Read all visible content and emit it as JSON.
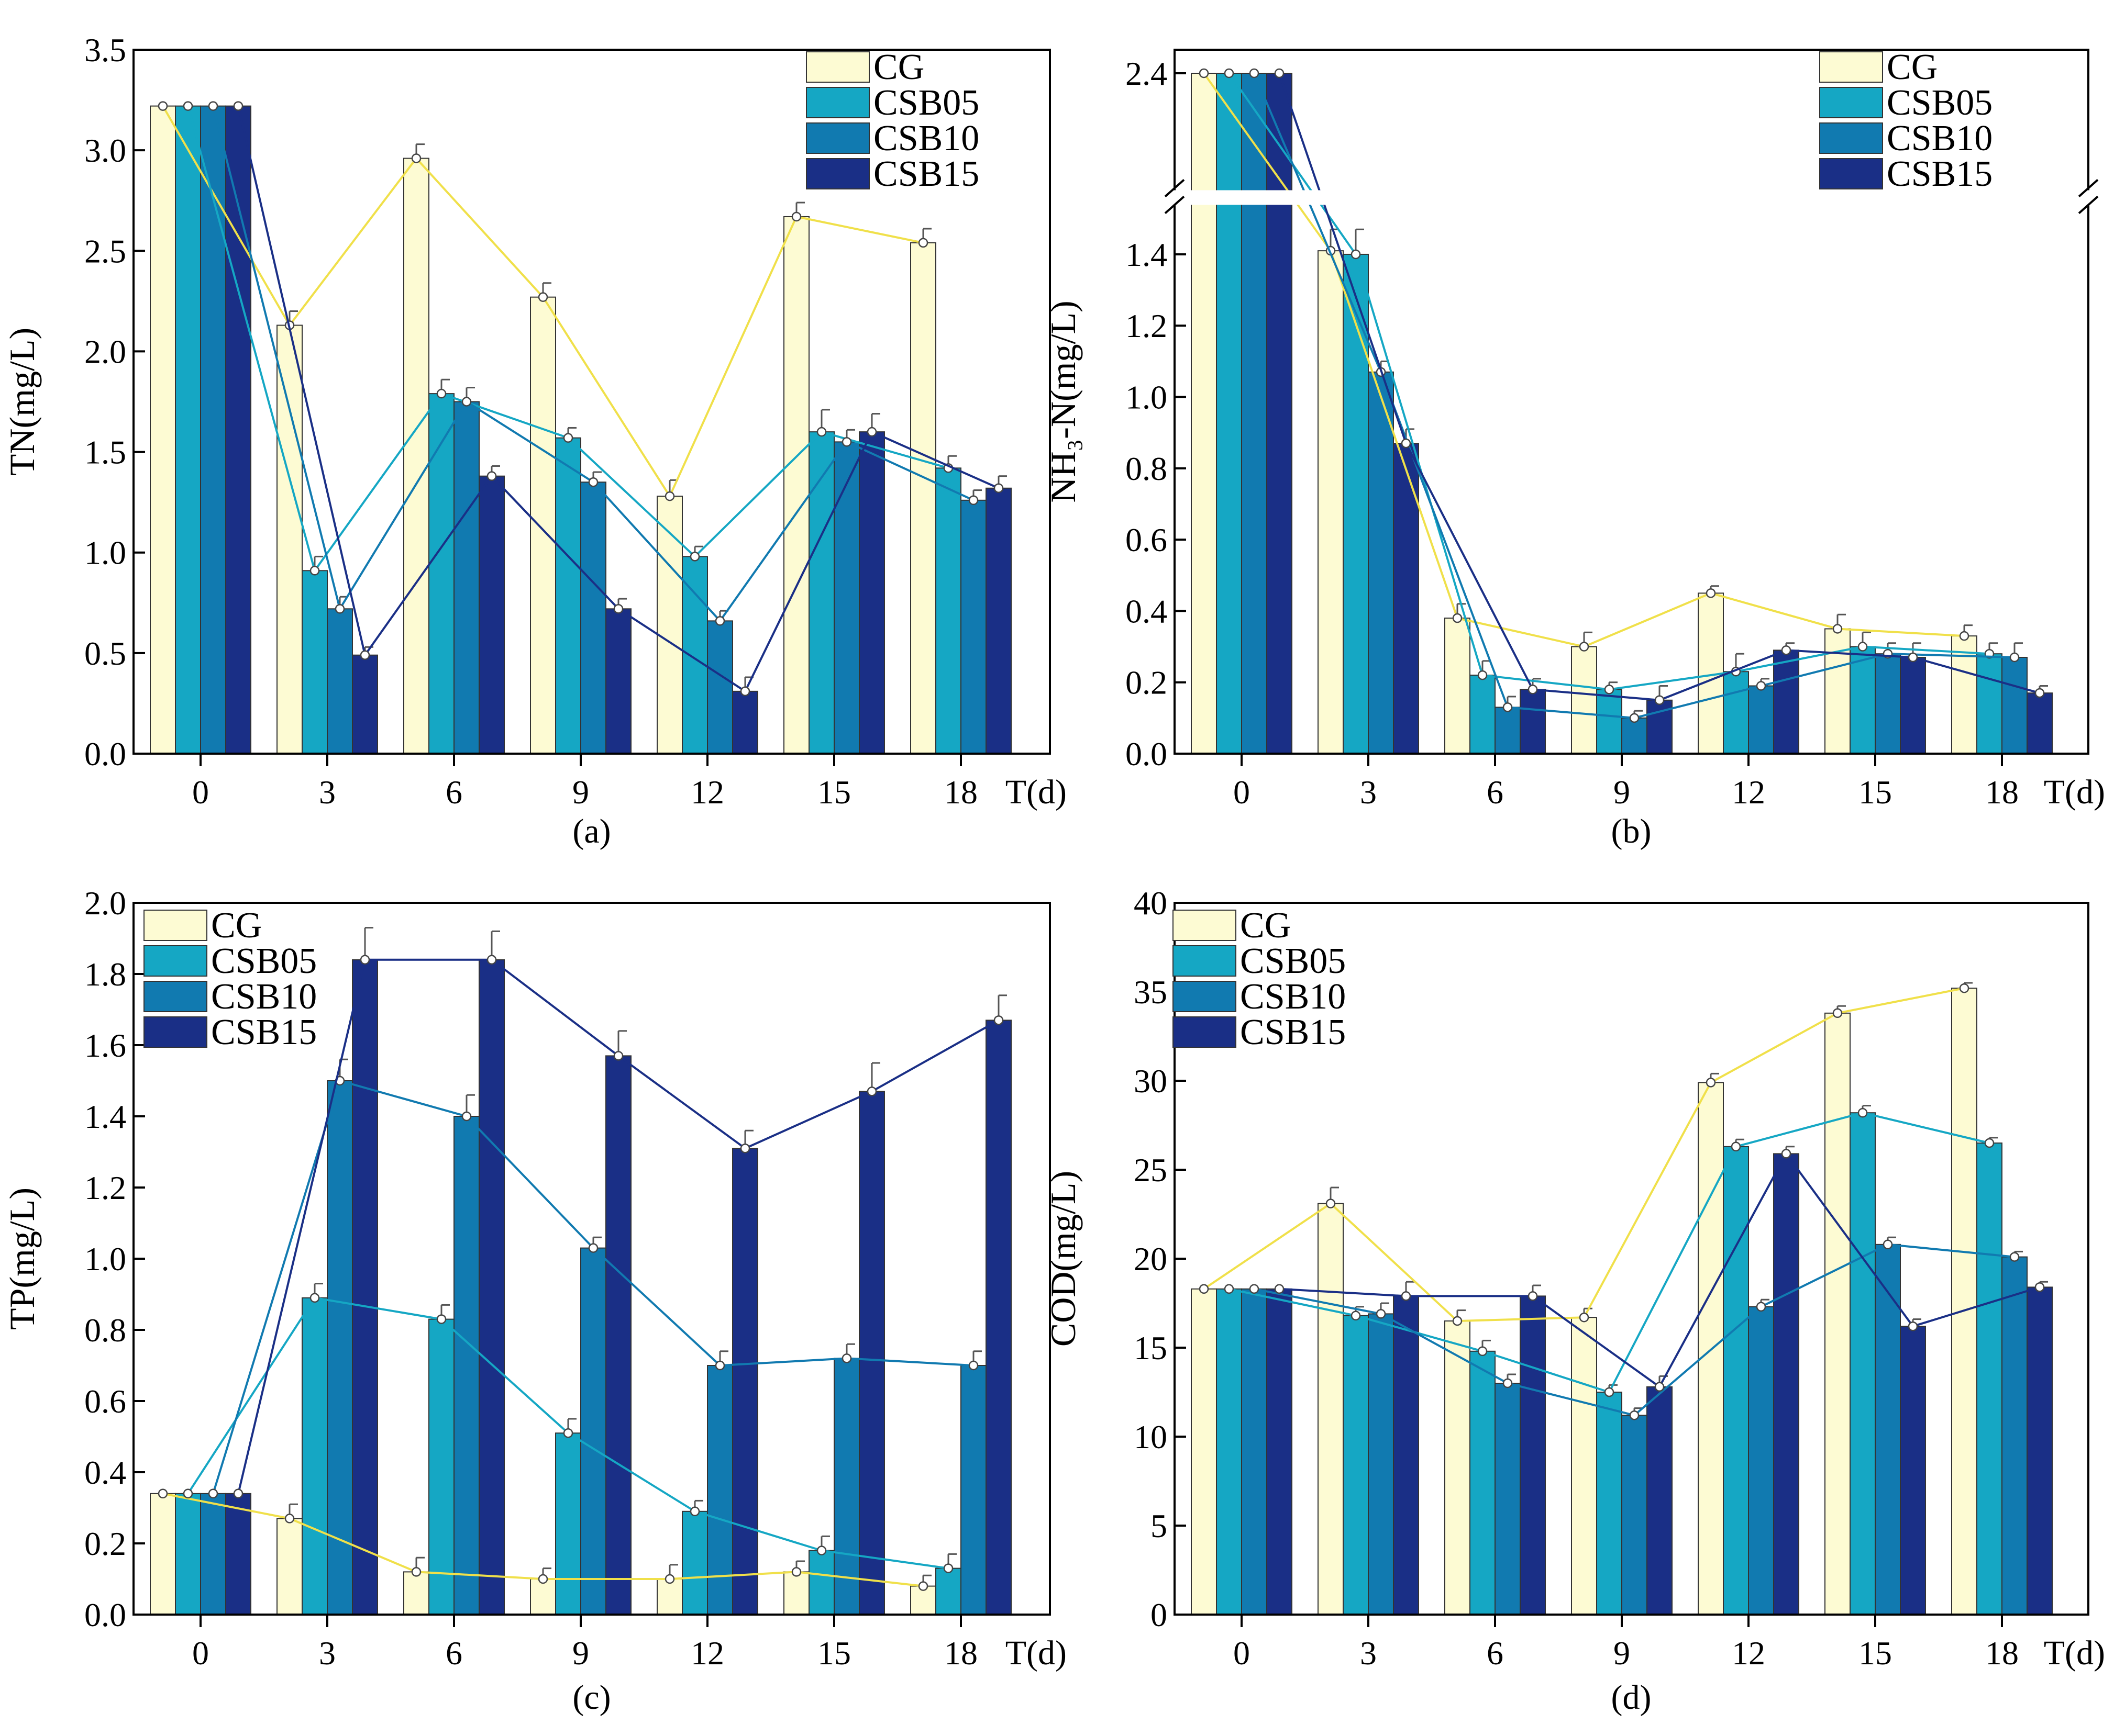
{
  "colors": {
    "CG": "#fdfbd3",
    "CSB05": "#15a7c4",
    "CSB10": "#117ab0",
    "CSB15": "#1a2f86",
    "axis": "#000000"
  },
  "chart_data": [
    {
      "id": "a",
      "type": "bar",
      "caption": "(a)",
      "xlabel": "T(d)",
      "ylabel": "TN(mg/L)",
      "categories": [
        "0",
        "3",
        "6",
        "9",
        "12",
        "15",
        "18"
      ],
      "ylim": [
        0,
        3.5
      ],
      "yticks": [
        "0.0",
        "0.5",
        "1.0",
        "1.5",
        "2.0",
        "2.5",
        "3.0",
        "3.5"
      ],
      "legend_position": "top-right",
      "series": [
        {
          "name": "CG",
          "values": [
            3.22,
            2.13,
            2.96,
            2.27,
            1.28,
            2.67,
            2.54
          ],
          "errors": [
            0.0,
            0.07,
            0.07,
            0.07,
            0.08,
            0.07,
            0.07
          ]
        },
        {
          "name": "CSB05",
          "values": [
            3.22,
            0.91,
            1.79,
            1.57,
            0.98,
            1.6,
            1.42
          ],
          "errors": [
            0.0,
            0.07,
            0.07,
            0.05,
            0.05,
            0.11,
            0.06
          ]
        },
        {
          "name": "CSB10",
          "values": [
            3.22,
            0.72,
            1.75,
            1.35,
            0.66,
            1.55,
            1.26
          ],
          "errors": [
            0.0,
            0.06,
            0.07,
            0.05,
            0.05,
            0.06,
            0.05
          ]
        },
        {
          "name": "CSB15",
          "values": [
            3.22,
            0.49,
            1.38,
            0.72,
            0.31,
            1.6,
            1.32
          ],
          "errors": [
            0.0,
            0.04,
            0.05,
            0.05,
            0.07,
            0.09,
            0.06
          ]
        }
      ]
    },
    {
      "id": "b",
      "type": "bar",
      "caption": "(b)",
      "xlabel": "T(d)",
      "ylabel": "NH₃-N(mg/L)",
      "categories": [
        "0",
        "3",
        "6",
        "9",
        "12",
        "15",
        "18"
      ],
      "ylim": [
        0,
        2.4
      ],
      "axis_break": [
        1.5,
        2.3
      ],
      "yticks": [
        "0.0",
        "0.2",
        "0.4",
        "0.6",
        "0.8",
        "1.0",
        "1.2",
        "1.4",
        "2.4"
      ],
      "legend_position": "top-right",
      "series": [
        {
          "name": "CG",
          "values": [
            2.4,
            1.41,
            0.38,
            0.3,
            0.45,
            0.35,
            0.33
          ],
          "errors": [
            0.0,
            0.06,
            0.04,
            0.04,
            0.02,
            0.04,
            0.03
          ]
        },
        {
          "name": "CSB05",
          "values": [
            2.4,
            1.4,
            0.22,
            0.18,
            0.23,
            0.3,
            0.28
          ],
          "errors": [
            0.0,
            0.07,
            0.04,
            0.02,
            0.05,
            0.04,
            0.03
          ]
        },
        {
          "name": "CSB10",
          "values": [
            2.4,
            1.07,
            0.13,
            0.1,
            0.19,
            0.28,
            0.27
          ],
          "errors": [
            0.0,
            0.03,
            0.03,
            0.02,
            0.02,
            0.03,
            0.04
          ]
        },
        {
          "name": "CSB15",
          "values": [
            2.4,
            0.87,
            0.18,
            0.15,
            0.29,
            0.27,
            0.17
          ],
          "errors": [
            0.0,
            0.04,
            0.03,
            0.04,
            0.02,
            0.04,
            0.02
          ]
        }
      ]
    },
    {
      "id": "c",
      "type": "bar",
      "caption": "(c)",
      "xlabel": "T(d)",
      "ylabel": "TP(mg/L)",
      "categories": [
        "0",
        "3",
        "6",
        "9",
        "12",
        "15",
        "18"
      ],
      "ylim": [
        0,
        2.0
      ],
      "yticks": [
        "0.0",
        "0.2",
        "0.4",
        "0.6",
        "0.8",
        "1.0",
        "1.2",
        "1.4",
        "1.6",
        "1.8",
        "2.0"
      ],
      "legend_position": "top-left",
      "series": [
        {
          "name": "CG",
          "values": [
            0.34,
            0.27,
            0.12,
            0.1,
            0.1,
            0.12,
            0.08
          ],
          "errors": [
            0.0,
            0.04,
            0.04,
            0.03,
            0.04,
            0.03,
            0.03
          ]
        },
        {
          "name": "CSB05",
          "values": [
            0.34,
            0.89,
            0.83,
            0.51,
            0.29,
            0.18,
            0.13
          ],
          "errors": [
            0.0,
            0.04,
            0.04,
            0.04,
            0.03,
            0.04,
            0.04
          ]
        },
        {
          "name": "CSB10",
          "values": [
            0.34,
            1.5,
            1.4,
            1.03,
            0.7,
            0.72,
            0.7
          ],
          "errors": [
            0.0,
            0.06,
            0.06,
            0.03,
            0.04,
            0.04,
            0.04
          ]
        },
        {
          "name": "CSB15",
          "values": [
            0.34,
            1.84,
            1.84,
            1.57,
            1.31,
            1.47,
            1.67
          ],
          "errors": [
            0.0,
            0.09,
            0.08,
            0.07,
            0.05,
            0.08,
            0.07
          ]
        }
      ]
    },
    {
      "id": "d",
      "type": "bar",
      "caption": "(d)",
      "xlabel": "T(d)",
      "ylabel": "COD(mg/L)",
      "categories": [
        "0",
        "3",
        "6",
        "9",
        "12",
        "15",
        "18"
      ],
      "ylim": [
        0,
        40
      ],
      "yticks": [
        "0",
        "5",
        "10",
        "15",
        "20",
        "25",
        "30",
        "35",
        "40"
      ],
      "legend_position": "top-left",
      "series": [
        {
          "name": "CG",
          "values": [
            18.3,
            23.1,
            16.5,
            16.7,
            29.9,
            33.8,
            35.2
          ],
          "errors": [
            0.0,
            0.9,
            0.6,
            0.5,
            0.5,
            0.4,
            0.3
          ]
        },
        {
          "name": "CSB05",
          "values": [
            18.3,
            16.8,
            14.8,
            12.5,
            26.3,
            28.2,
            26.5
          ],
          "errors": [
            0.0,
            0.5,
            0.6,
            0.4,
            0.4,
            0.4,
            0.3
          ]
        },
        {
          "name": "CSB10",
          "values": [
            18.3,
            16.9,
            13.0,
            11.2,
            17.3,
            20.8,
            20.1
          ],
          "errors": [
            0.0,
            0.6,
            0.5,
            0.4,
            0.4,
            0.4,
            0.3
          ]
        },
        {
          "name": "CSB15",
          "values": [
            18.3,
            17.9,
            17.9,
            12.8,
            25.9,
            16.2,
            18.4
          ],
          "errors": [
            0.0,
            0.8,
            0.6,
            0.6,
            0.4,
            0.4,
            0.3
          ]
        }
      ]
    }
  ]
}
